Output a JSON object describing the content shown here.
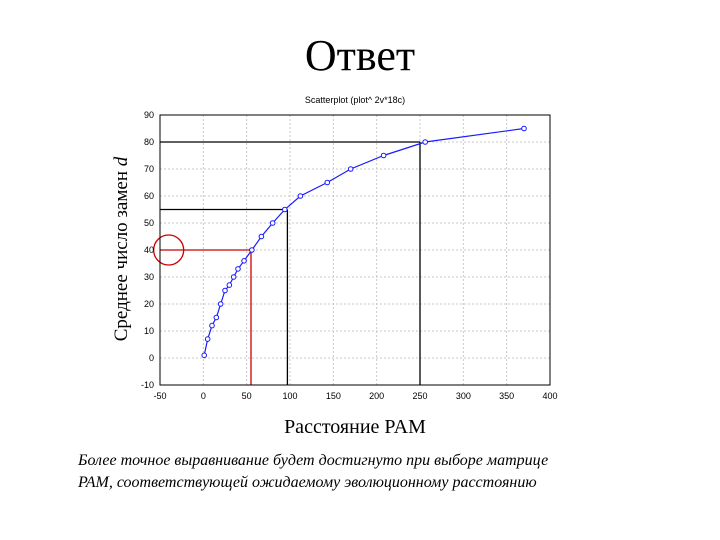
{
  "slide": {
    "title": "Ответ",
    "caption_lines": [
      "Более точное выравнивание будет достигнуто при выборе матрице",
      "PAM, соответствующей ожидаемому эволюционному расстоянию"
    ]
  },
  "chart_data": {
    "type": "scatter",
    "title": "Scatterplot (plot^ 2v*18c)",
    "xlabel": "Расстояние PAM",
    "ylabel_prefix": "Среднее число замен ",
    "ylabel_var": "d",
    "xlim": [
      -50,
      400
    ],
    "ylim": [
      -10,
      90
    ],
    "x_ticks": [
      -50,
      0,
      50,
      100,
      150,
      200,
      250,
      300,
      350,
      400
    ],
    "y_ticks": [
      -10,
      0,
      10,
      20,
      30,
      40,
      50,
      60,
      70,
      80,
      90
    ],
    "x_tick_labels": [
      "-50",
      "0",
      "50",
      "100",
      "150",
      "200",
      "250",
      "300",
      "350",
      "400"
    ],
    "y_tick_labels": [
      "-10",
      "0",
      "10",
      "20",
      "30",
      "40",
      "50",
      "60",
      "70",
      "80",
      "90"
    ],
    "grid": true,
    "line_color": "#1a1aff",
    "marker": "open-circle",
    "series": [
      {
        "x": [
          1,
          5,
          10,
          15,
          20,
          25,
          30,
          35,
          40,
          47,
          56,
          67,
          80,
          94,
          112,
          143,
          170,
          208,
          256,
          370
        ],
        "y": [
          1,
          7,
          12,
          15,
          20,
          25,
          27,
          30,
          33,
          36,
          40,
          45,
          50,
          55,
          60,
          65,
          70,
          75,
          80,
          85
        ]
      }
    ],
    "reference_lines": [
      {
        "x": 55,
        "y": 40,
        "color": "#cc0000",
        "highlight": true
      },
      {
        "x": 97,
        "y": 55,
        "color": "#000000",
        "highlight": false
      },
      {
        "x": 250,
        "y": 80,
        "color": "#000000",
        "highlight": false
      }
    ],
    "highlight_circle": {
      "x": -40,
      "y": 40,
      "color": "#cc0000"
    }
  }
}
